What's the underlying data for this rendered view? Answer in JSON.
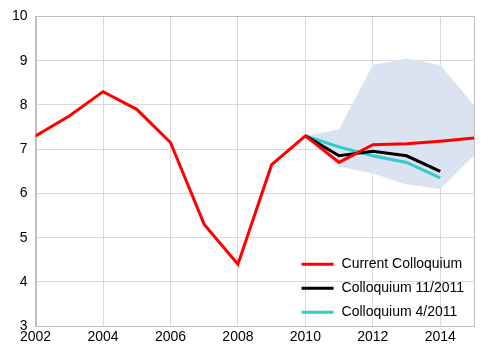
{
  "chart_data": {
    "type": "line",
    "x": [
      2002,
      2003,
      2004,
      2005,
      2006,
      2007,
      2008,
      2009,
      2010,
      2011,
      2012,
      2013,
      2014,
      2015
    ],
    "series": [
      {
        "name": "Current Colloquium",
        "color": "#ff0000",
        "values": [
          7.3,
          7.75,
          8.3,
          7.9,
          7.15,
          5.3,
          4.4,
          6.65,
          7.3,
          6.7,
          7.1,
          7.12,
          7.18,
          7.25
        ]
      },
      {
        "name": "Colloquium 11/2011",
        "color": "#000000",
        "values": [
          null,
          null,
          null,
          null,
          null,
          null,
          null,
          null,
          7.3,
          6.85,
          6.95,
          6.85,
          6.5,
          null
        ]
      },
      {
        "name": "Colloquium 4/2011",
        "color": "#33cccc",
        "values": [
          null,
          null,
          null,
          null,
          null,
          null,
          null,
          null,
          7.3,
          7.05,
          6.85,
          6.7,
          6.35,
          null
        ]
      }
    ],
    "band": {
      "color": "#dbe3f0",
      "lower": [
        null,
        null,
        null,
        null,
        null,
        null,
        null,
        null,
        7.3,
        6.6,
        6.45,
        6.2,
        6.1,
        6.85
      ],
      "upper": [
        null,
        null,
        null,
        null,
        null,
        null,
        null,
        null,
        7.3,
        7.45,
        8.9,
        9.05,
        8.9,
        8.0
      ]
    },
    "xlim": [
      2002,
      2015
    ],
    "xticks": [
      2002,
      2004,
      2006,
      2008,
      2010,
      2012,
      2014
    ],
    "ylim": [
      3,
      10
    ],
    "yticks": [
      3,
      4,
      5,
      6,
      7,
      8,
      9,
      10
    ],
    "grid": true,
    "legend": "lower right"
  }
}
